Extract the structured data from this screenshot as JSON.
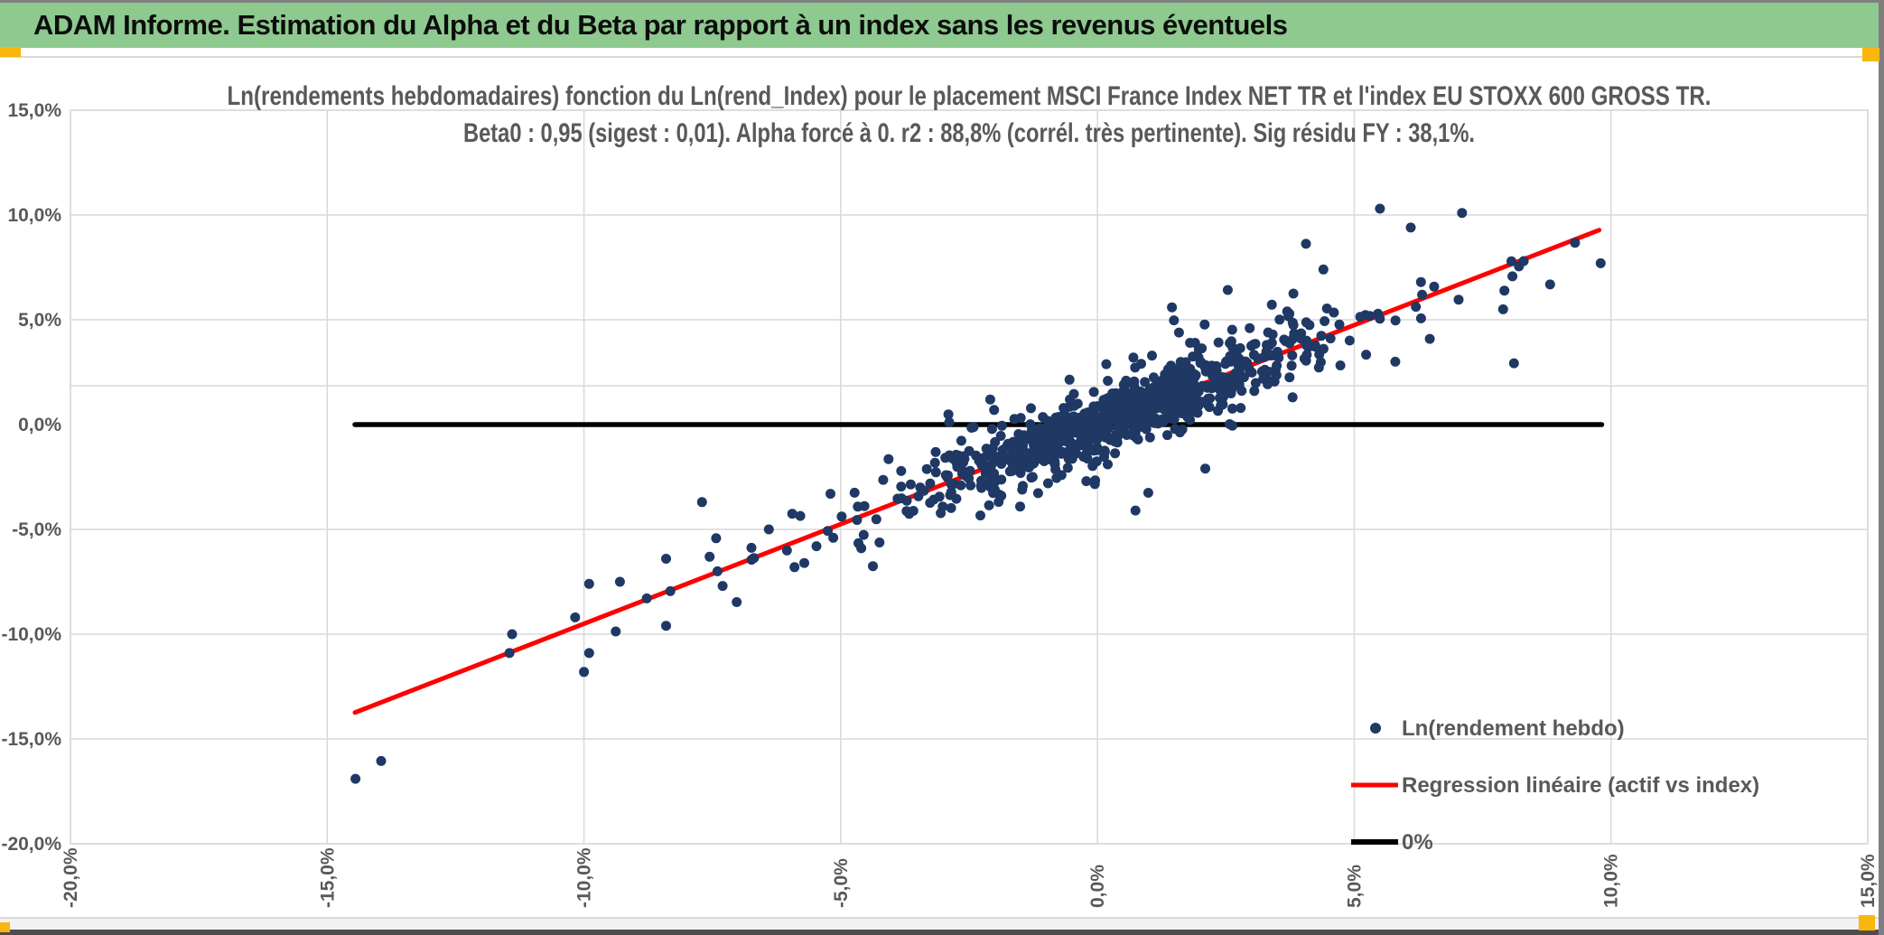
{
  "window": {
    "header_title": "ADAM Informe. Estimation du Alpha et du Beta par rapport à un index sans les revenus éventuels",
    "colors": {
      "header_bg": "#8EC98F",
      "handle": "#FBB60E",
      "frame": "#7F7F7F",
      "bottom_bar": "#4D4D4D",
      "grid": "#D9D9D9",
      "text_gray": "#595959"
    }
  },
  "chart_data": {
    "type": "scatter",
    "title_line1": "Ln(rendements hebdomadaires) fonction du Ln(rend_Index) pour le placement MSCI France Index NET TR et l'index EU STOXX 600 GROSS TR.",
    "title_line2": "Beta0 : 0,95 (sigest : 0,01). Alpha forcé à 0. r2 : 88,8% (corrél. très pertinente). Sig résidu FY : 38,1%.",
    "xlim": [
      -20,
      15
    ],
    "ylim": [
      -20,
      15
    ],
    "grid_on": true,
    "axis_cross_line_y": 1.85,
    "legend_position": "bottom-right",
    "x_ticks": [
      {
        "value": -20,
        "label": "-20,0%"
      },
      {
        "value": -15,
        "label": "-15,0%"
      },
      {
        "value": -10,
        "label": "-10,0%"
      },
      {
        "value": -5,
        "label": "-5,0%"
      },
      {
        "value": 0,
        "label": "0,0%"
      },
      {
        "value": 5,
        "label": "5,0%"
      },
      {
        "value": 10,
        "label": "10,0%"
      },
      {
        "value": 15,
        "label": "15,0%"
      }
    ],
    "y_ticks": [
      {
        "value": 15,
        "label": "15,0%"
      },
      {
        "value": 10,
        "label": "10,0%"
      },
      {
        "value": 5,
        "label": "5,0%"
      },
      {
        "value": 0,
        "label": "0,0%"
      },
      {
        "value": -5,
        "label": "-5,0%"
      },
      {
        "value": -10,
        "label": "-10,0%"
      },
      {
        "value": -15,
        "label": "-15,0%"
      },
      {
        "value": -20,
        "label": "-20,0%"
      }
    ],
    "series": [
      {
        "name": "Ln(rendement hebdo)",
        "kind": "scatter",
        "color": "#1F3864",
        "cloud": {
          "seed": 77,
          "n": 880,
          "x_mean": 0.25,
          "x_sigma": 1.85,
          "x_sigma_tail": 4.0,
          "x_tail_frac": 0.13,
          "beta": 0.95,
          "resid_sigma": 0.6,
          "resid_sigma_tail": 1.35,
          "resid_tail_frac": 0.1,
          "resid_spread_slope": 0.11,
          "x_min": -12,
          "x_max": 9.3,
          "y_min": -16.5,
          "y_max": 10.2
        },
        "outlier_points": [
          [
            -14.45,
            -16.9
          ],
          [
            -13.95,
            -16.05
          ],
          [
            -11.45,
            -10.9
          ],
          [
            -11.4,
            -10.0
          ],
          [
            -10.0,
            -11.8
          ],
          [
            -9.9,
            -10.9
          ],
          [
            -9.9,
            -7.6
          ],
          [
            -9.3,
            -7.5
          ],
          [
            -8.4,
            -9.6
          ],
          [
            -8.4,
            -6.4
          ],
          [
            -7.7,
            -3.7
          ],
          [
            -7.4,
            -7.0
          ],
          [
            -7.3,
            -7.7
          ],
          [
            -6.4,
            -5.0
          ],
          [
            -5.9,
            -6.8
          ],
          [
            -5.2,
            -3.3
          ],
          [
            -4.6,
            -5.9
          ],
          [
            0.7,
            3.2
          ],
          [
            0.85,
            2.9
          ],
          [
            1.9,
            3.9
          ],
          [
            0.74,
            -4.1
          ],
          [
            2.1,
            -2.1
          ],
          [
            3.8,
            1.3
          ],
          [
            4.4,
            7.4
          ],
          [
            5.5,
            10.3
          ],
          [
            5.8,
            3.0
          ],
          [
            6.1,
            9.4
          ],
          [
            6.3,
            6.8
          ],
          [
            7.1,
            10.1
          ],
          [
            7.9,
            5.5
          ],
          [
            8.3,
            7.8
          ],
          [
            9.8,
            7.7
          ]
        ]
      },
      {
        "name": "Regression linéaire (actif vs index)",
        "kind": "line",
        "color": "#FF0000",
        "x1": -14.46,
        "y1": -13.74,
        "x2": 9.77,
        "y2": 9.28
      },
      {
        "name": "0%",
        "kind": "line",
        "color": "#000000",
        "x1": -14.46,
        "y1": 0,
        "x2": 9.82,
        "y2": 0
      }
    ]
  }
}
